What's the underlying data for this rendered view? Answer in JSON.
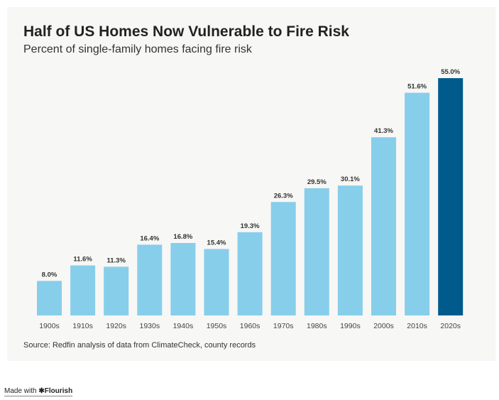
{
  "chart_data": {
    "type": "bar",
    "title": "Half of US Homes Now Vulnerable to Fire Risk",
    "subtitle": "Percent of single-family homes facing fire risk",
    "categories": [
      "1900s",
      "1910s",
      "1920s",
      "1930s",
      "1940s",
      "1950s",
      "1960s",
      "1970s",
      "1980s",
      "1990s",
      "2000s",
      "2010s",
      "2020s"
    ],
    "values": [
      8.0,
      11.6,
      11.3,
      16.4,
      16.8,
      15.4,
      19.3,
      26.3,
      29.5,
      30.1,
      41.3,
      51.6,
      55.0
    ],
    "value_labels": [
      "8.0%",
      "11.6%",
      "11.3%",
      "16.4%",
      "16.8%",
      "15.4%",
      "19.3%",
      "26.3%",
      "29.5%",
      "30.1%",
      "41.3%",
      "51.6%",
      "55.0%"
    ],
    "xlabel": "",
    "ylabel": "",
    "ylim": [
      0,
      55
    ],
    "grid": false,
    "bar_color": "#87ceeb",
    "highlight_color": "#005a8c",
    "highlight_category": "2020s",
    "source": "Source: Redfin analysis of data from ClimateCheck, county records"
  },
  "footer": {
    "made_with": "Made with",
    "mark": "✱",
    "brand": "Flourish"
  }
}
